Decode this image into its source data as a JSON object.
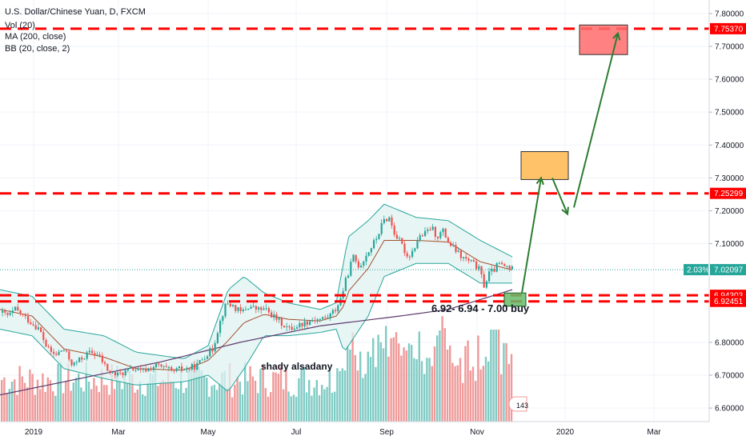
{
  "legend": [
    "U.S. Dollar/Chinese Yuan, D, FXCM",
    "Vol (20)",
    "MA (200, close)",
    "BB (20, close, 2)"
  ],
  "colors": {
    "up": "#26a69a",
    "down": "#ef5350",
    "vol_up": "#80cbc4",
    "vol_down": "#ef9a9a",
    "ma": "#5d3a6b",
    "bb_fill": "#e0f2f1",
    "bb_line": "#26a69a",
    "level": "#ff0000",
    "arrow": "#2e7d32",
    "current": "#26a69a"
  },
  "chart_data": {
    "type": "candlestick",
    "title": "U.S. Dollar/Chinese Yuan, D, FXCM",
    "x_ticks": [
      "2019",
      "Mar",
      "May",
      "Jul",
      "Sep",
      "Nov",
      "2020",
      "Mar"
    ],
    "y_ticks": [
      "7.80000",
      "7.70000",
      "7.60000",
      "7.50000",
      "7.40000",
      "7.30000",
      "7.20000",
      "7.10000",
      "6.80000",
      "6.70000",
      "6.60000"
    ],
    "ylim": [
      6.537,
      7.841
    ],
    "price_path": [
      [
        0,
        6.89
      ],
      [
        10,
        6.88
      ],
      [
        18,
        6.9
      ],
      [
        28,
        6.88
      ],
      [
        38,
        6.86
      ],
      [
        48,
        6.84
      ],
      [
        58,
        6.78
      ],
      [
        68,
        6.76
      ],
      [
        78,
        6.78
      ],
      [
        90,
        6.73
      ],
      [
        100,
        6.75
      ],
      [
        112,
        6.77
      ],
      [
        122,
        6.76
      ],
      [
        135,
        6.71
      ],
      [
        145,
        6.7
      ],
      [
        155,
        6.71
      ],
      [
        165,
        6.72
      ],
      [
        175,
        6.71
      ],
      [
        185,
        6.72
      ],
      [
        195,
        6.73
      ],
      [
        205,
        6.72
      ],
      [
        215,
        6.71
      ],
      [
        225,
        6.72
      ],
      [
        235,
        6.72
      ],
      [
        245,
        6.73
      ],
      [
        255,
        6.76
      ],
      [
        265,
        6.78
      ],
      [
        270,
        6.83
      ],
      [
        276,
        6.88
      ],
      [
        282,
        6.92
      ],
      [
        290,
        6.91
      ],
      [
        300,
        6.89
      ],
      [
        310,
        6.91
      ],
      [
        320,
        6.9
      ],
      [
        330,
        6.9
      ],
      [
        340,
        6.88
      ],
      [
        350,
        6.86
      ],
      [
        360,
        6.84
      ],
      [
        370,
        6.85
      ],
      [
        380,
        6.86
      ],
      [
        390,
        6.87
      ],
      [
        400,
        6.87
      ],
      [
        410,
        6.88
      ],
      [
        418,
        6.9
      ],
      [
        424,
        6.93
      ],
      [
        430,
        6.98
      ],
      [
        435,
        7.02
      ],
      [
        440,
        7.06
      ],
      [
        448,
        7.03
      ],
      [
        455,
        7.06
      ],
      [
        463,
        7.09
      ],
      [
        470,
        7.12
      ],
      [
        478,
        7.17
      ],
      [
        485,
        7.18
      ],
      [
        492,
        7.13
      ],
      [
        500,
        7.1
      ],
      [
        508,
        7.06
      ],
      [
        515,
        7.08
      ],
      [
        522,
        7.12
      ],
      [
        530,
        7.13
      ],
      [
        538,
        7.15
      ],
      [
        545,
        7.12
      ],
      [
        552,
        7.14
      ],
      [
        560,
        7.1
      ],
      [
        568,
        7.08
      ],
      [
        575,
        7.06
      ],
      [
        582,
        7.05
      ],
      [
        590,
        7.04
      ],
      [
        598,
        7.02
      ],
      [
        604,
        6.97
      ],
      [
        610,
        7.01
      ],
      [
        616,
        7.02
      ],
      [
        622,
        7.04
      ],
      [
        628,
        7.03
      ],
      [
        634,
        7.03
      ],
      [
        640,
        7.02
      ]
    ],
    "ma200_path": [
      [
        0,
        6.64
      ],
      [
        100,
        6.69
      ],
      [
        200,
        6.74
      ],
      [
        300,
        6.8
      ],
      [
        400,
        6.85
      ],
      [
        500,
        6.88
      ],
      [
        560,
        6.9
      ],
      [
        640,
        6.96
      ]
    ],
    "bb_upper_path": [
      [
        0,
        6.96
      ],
      [
        40,
        6.94
      ],
      [
        80,
        6.84
      ],
      [
        130,
        6.82
      ],
      [
        170,
        6.77
      ],
      [
        230,
        6.75
      ],
      [
        260,
        6.79
      ],
      [
        285,
        6.96
      ],
      [
        305,
        7.0
      ],
      [
        330,
        6.95
      ],
      [
        360,
        6.92
      ],
      [
        400,
        6.9
      ],
      [
        420,
        6.92
      ],
      [
        435,
        7.12
      ],
      [
        460,
        7.17
      ],
      [
        480,
        7.22
      ],
      [
        520,
        7.18
      ],
      [
        560,
        7.17
      ],
      [
        600,
        7.11
      ],
      [
        640,
        7.06
      ]
    ],
    "bb_lower_path": [
      [
        0,
        6.84
      ],
      [
        40,
        6.82
      ],
      [
        80,
        6.72
      ],
      [
        130,
        6.69
      ],
      [
        170,
        6.67
      ],
      [
        230,
        6.68
      ],
      [
        260,
        6.7
      ],
      [
        285,
        6.65
      ],
      [
        305,
        6.72
      ],
      [
        330,
        6.82
      ],
      [
        360,
        6.82
      ],
      [
        400,
        6.83
      ],
      [
        420,
        6.84
      ],
      [
        430,
        6.77
      ],
      [
        460,
        6.88
      ],
      [
        480,
        7.0
      ],
      [
        520,
        7.04
      ],
      [
        560,
        7.04
      ],
      [
        600,
        6.98
      ],
      [
        640,
        6.98
      ]
    ],
    "levels": [
      {
        "label": "7.75370",
        "value": 7.7537
      },
      {
        "label": "7.25299",
        "value": 7.25299
      },
      {
        "label": "6.94303",
        "value": 6.94303
      },
      {
        "label": "6.92451",
        "value": 6.92451
      }
    ],
    "current_price": {
      "label": "7.02097",
      "value": 7.02097,
      "pct": "2.03%"
    },
    "zones": [
      {
        "type": "buy",
        "x0": 630,
        "x1": 657,
        "y0": 6.95,
        "y1": 6.91
      },
      {
        "type": "target1",
        "x0": 651,
        "x1": 710,
        "y0": 7.38,
        "y1": 7.295
      },
      {
        "type": "target2",
        "x0": 724,
        "x1": 784,
        "y0": 7.765,
        "y1": 7.675
      }
    ],
    "arrows": [
      [
        [
          652,
          6.95
        ],
        [
          676,
          7.3
        ]
      ],
      [
        [
          690,
          7.3
        ],
        [
          709,
          7.19
        ]
      ],
      [
        [
          717,
          7.21
        ],
        [
          772,
          7.74
        ]
      ]
    ],
    "annotations": [
      {
        "text": "6.92- 6.94 - 7.00 buy",
        "x": 539,
        "value": 6.89
      },
      {
        "text": "shady alsadany",
        "x": 326,
        "value": 6.72
      }
    ],
    "volume_count_badge": "143"
  }
}
